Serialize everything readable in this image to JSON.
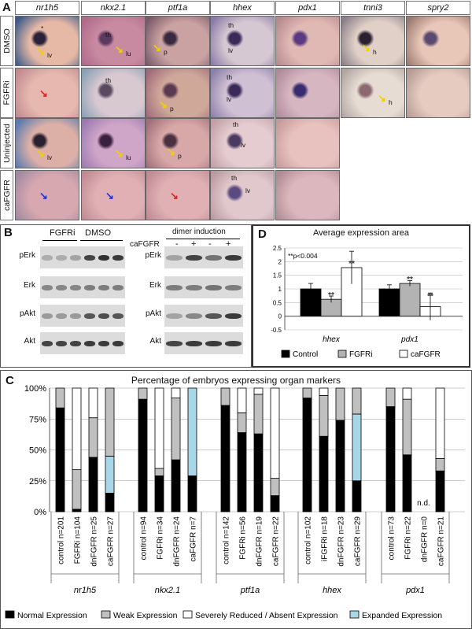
{
  "panel_a": {
    "letter": "A",
    "genes": [
      "nr1h5",
      "nkx2.1",
      "ptf1a",
      "hhex",
      "pdx1",
      "tnni3",
      "spry2"
    ],
    "rows": [
      "DMSO",
      "FGFRi",
      "Uninjected",
      "caFGFR"
    ],
    "annotations": {
      "lv": "lv",
      "lu": "lu",
      "p": "p",
      "th": "th",
      "h": "h",
      "star": "*"
    }
  },
  "panel_b": {
    "letter": "B",
    "left_groups": [
      "FGFRi",
      "DMSO"
    ],
    "right_title": "dimer induction",
    "right_row_label": "caFGFR",
    "signs": [
      "-",
      "+",
      "-",
      "+"
    ],
    "rows": [
      "pErk",
      "Erk",
      "pAkt",
      "Akt"
    ]
  },
  "panel_d": {
    "letter": "D",
    "title": "Average expression area",
    "annotation": "**p<0.004",
    "significance_mark": "**",
    "legend": [
      "Control",
      "FGFRi",
      "caFGFR"
    ],
    "colors": {
      "Control": "#000000",
      "FGFRi": "#b3b3b3",
      "caFGFR": "#ffffff"
    }
  },
  "chart_data": [
    {
      "type": "bar",
      "title": "Average expression area",
      "categories": [
        "hhex",
        "pdx1"
      ],
      "series": [
        {
          "name": "Control",
          "values": [
            1.0,
            1.0
          ],
          "errors": [
            0.2,
            0.15
          ]
        },
        {
          "name": "FGFRi",
          "values": [
            0.62,
            1.2
          ],
          "errors": [
            0.12,
            0.1
          ]
        },
        {
          "name": "caFGFR",
          "values": [
            1.78,
            0.35
          ],
          "errors": [
            0.6,
            0.5
          ]
        }
      ],
      "ylim": [
        -0.5,
        2.5
      ],
      "yticks": [
        "-0.5",
        "0",
        "0.5",
        "1",
        "1.5",
        "2",
        "2.5"
      ],
      "grid": true,
      "legend_position": "bottom"
    },
    {
      "type": "bar",
      "stacked": true,
      "title": "Percentage of embryos expressing organ markers",
      "yticks": [
        "0%",
        "25%",
        "50%",
        "75%",
        "100%"
      ],
      "ylim": [
        0,
        100
      ],
      "legend": [
        "Normal Expression",
        "Weak Expression",
        "Severely Reduced / Absent Expression",
        "Expanded Expression"
      ],
      "groups": [
        {
          "gene": "nr1h5",
          "bars": [
            {
              "label": "control n=201",
              "normal": 84,
              "weak": 16,
              "absent": 0,
              "expanded": 0
            },
            {
              "label": "FGFRi n=104",
              "normal": 2,
              "weak": 32,
              "absent": 66,
              "expanded": 0
            },
            {
              "label": "dnFGFR n=25",
              "normal": 44,
              "weak": 32,
              "absent": 24,
              "expanded": 0
            },
            {
              "label": "caFGFR n=27",
              "normal": 15,
              "weak": 55,
              "absent": 0,
              "expanded": 30
            }
          ]
        },
        {
          "gene": "nkx2.1",
          "bars": [
            {
              "label": "control n=94",
              "normal": 91,
              "weak": 9,
              "absent": 0,
              "expanded": 0
            },
            {
              "label": "FGFRi n=34",
              "normal": 29,
              "weak": 6,
              "absent": 65,
              "expanded": 0
            },
            {
              "label": "dnFGFR n=24",
              "normal": 42,
              "weak": 50,
              "absent": 8,
              "expanded": 0
            },
            {
              "label": "caFGFR n=7",
              "normal": 29,
              "weak": 0,
              "absent": 0,
              "expanded": 71
            }
          ]
        },
        {
          "gene": "ptf1a",
          "bars": [
            {
              "label": "control n=142",
              "normal": 86,
              "weak": 14,
              "absent": 0,
              "expanded": 0
            },
            {
              "label": "FGFRi n=56",
              "normal": 64,
              "weak": 16,
              "absent": 20,
              "expanded": 0
            },
            {
              "label": "dnFGFR n=19",
              "normal": 63,
              "weak": 32,
              "absent": 5,
              "expanded": 0
            },
            {
              "label": "caFGFR n=22",
              "normal": 13,
              "weak": 14,
              "absent": 73,
              "expanded": 0
            }
          ]
        },
        {
          "gene": "hhex",
          "bars": [
            {
              "label": "control n=102",
              "normal": 92,
              "weak": 8,
              "absent": 0,
              "expanded": 0
            },
            {
              "label": "iFGFRi n=18",
              "normal": 61,
              "weak": 33,
              "absent": 6,
              "expanded": 0
            },
            {
              "label": "dnFGFR n=23",
              "normal": 74,
              "weak": 26,
              "absent": 0,
              "expanded": 0
            },
            {
              "label": "caFGFR n=29",
              "normal": 25,
              "weak": 21,
              "absent": 0,
              "expanded": 54
            }
          ]
        },
        {
          "gene": "pdx1",
          "bars": [
            {
              "label": "control n=73",
              "normal": 85,
              "weak": 15,
              "absent": 0,
              "expanded": 0
            },
            {
              "label": "FGFRi n=22",
              "normal": 46,
              "weak": 45,
              "absent": 9,
              "expanded": 0
            },
            {
              "label": "dnFGFR n=0",
              "normal": 0,
              "weak": 0,
              "absent": 0,
              "expanded": 0,
              "note": "n.d."
            },
            {
              "label": "caFGFR n=21",
              "normal": 33,
              "weak": 10,
              "absent": 57,
              "expanded": 0
            }
          ]
        }
      ]
    }
  ],
  "panel_c": {
    "letter": "C",
    "colors": {
      "normal": "#000000",
      "weak": "#c0c0c0",
      "absent": "#ffffff",
      "expanded": "#a8d8e8"
    }
  }
}
